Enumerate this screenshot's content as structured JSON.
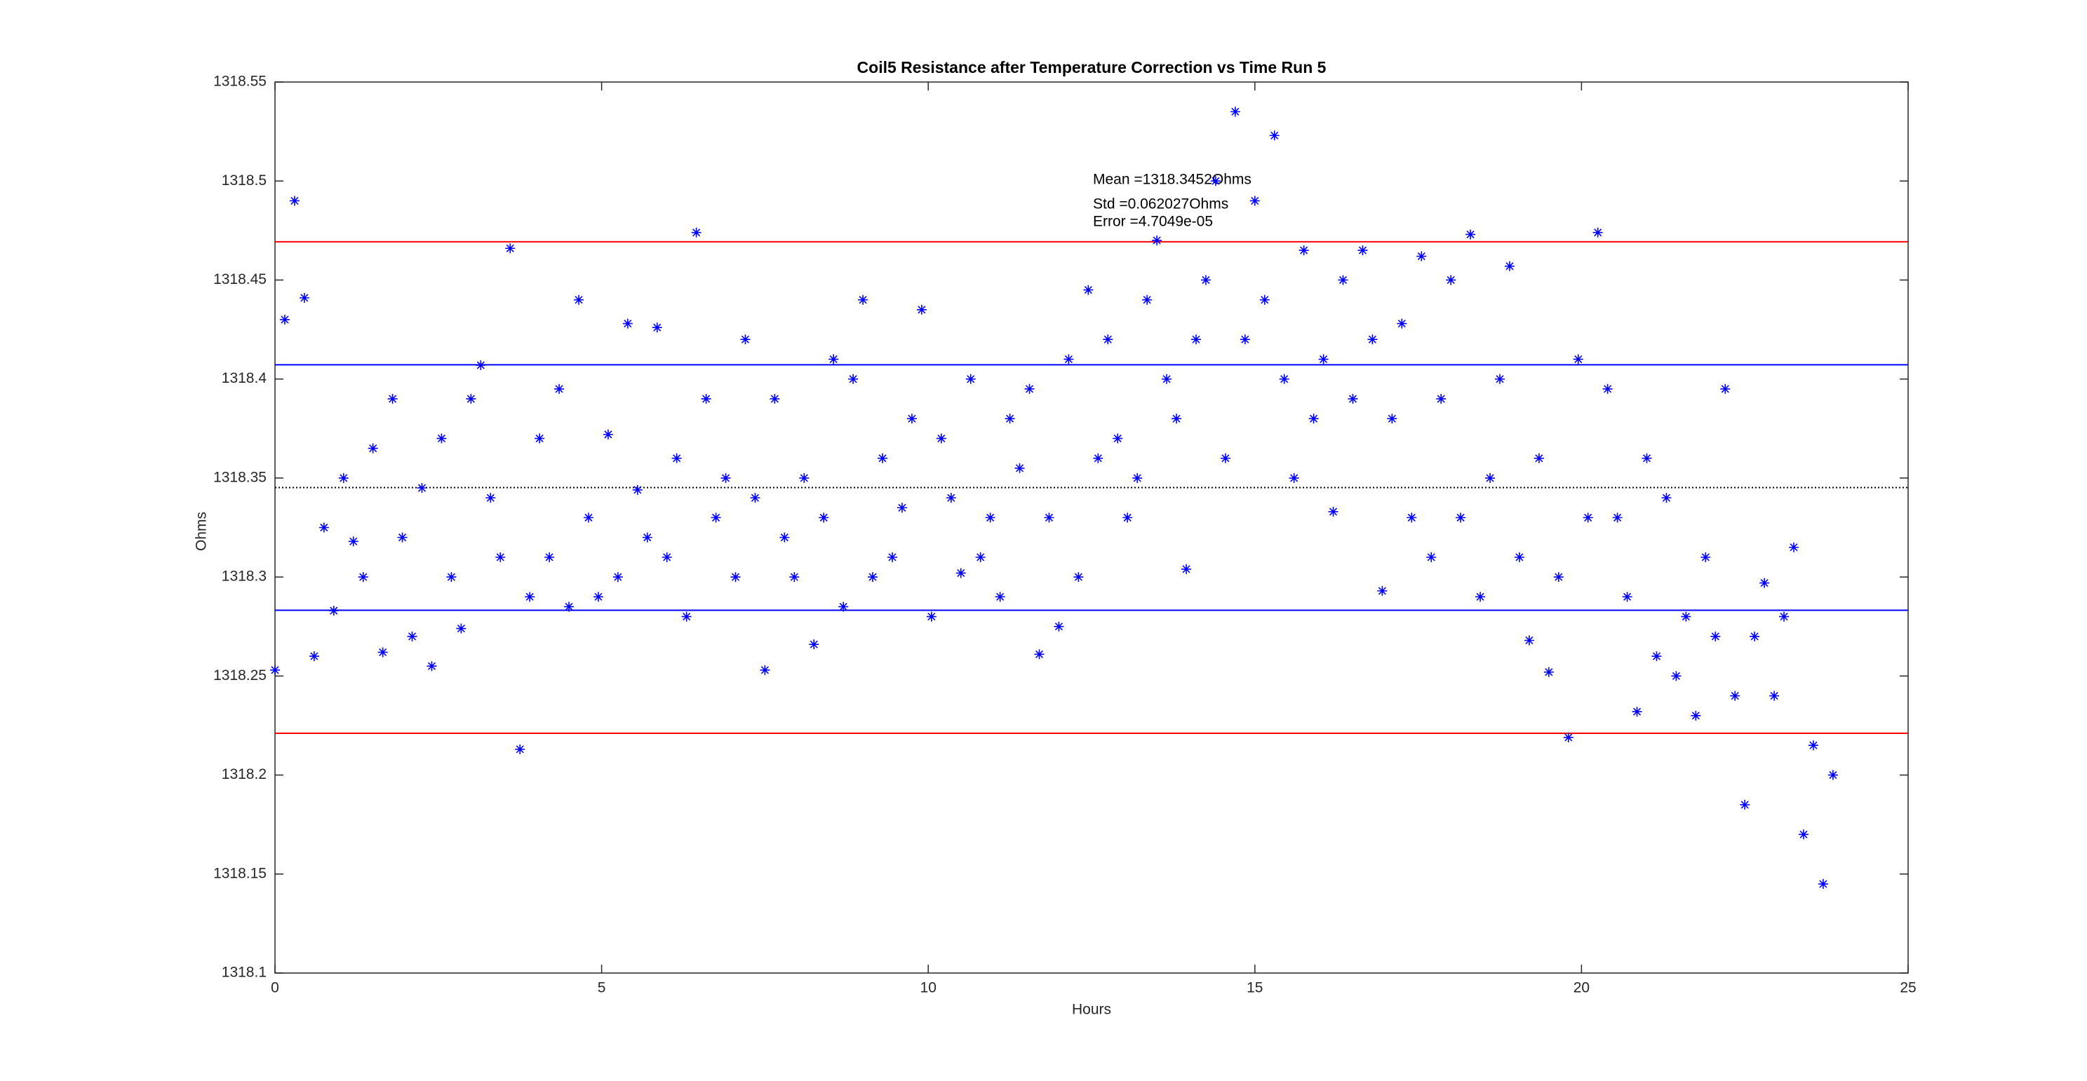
{
  "chart_data": {
    "type": "scatter",
    "title": "Coil5 Resistance after Temperature Correction vs Time Run 5",
    "x_label": "Hours",
    "y_label": "Ohms",
    "xlim": [
      0,
      25
    ],
    "xticks": [
      0,
      5,
      10,
      15,
      20,
      25
    ],
    "ylim": [
      1318.1,
      1318.55
    ],
    "yticks": [
      1318.1,
      1318.15,
      1318.2,
      1318.25,
      1318.3,
      1318.35,
      1318.4,
      1318.45,
      1318.5,
      1318.55
    ],
    "color": "#0000ff",
    "x": [
      0,
      0.15,
      0.3,
      0.45,
      0.6,
      0.75,
      0.9,
      1.05,
      1.2,
      1.35,
      1.5,
      1.65,
      1.8,
      1.95,
      2.1,
      2.25,
      2.4,
      2.55,
      2.7,
      2.85,
      3,
      3.15,
      3.3,
      3.45,
      3.6,
      3.75,
      3.9,
      4.05,
      4.2,
      4.35,
      4.5,
      4.65,
      4.8,
      4.95,
      5.1,
      5.25,
      5.4,
      5.55,
      5.7,
      5.85,
      6,
      6.15,
      6.3,
      6.45,
      6.6,
      6.75,
      6.9,
      7.05,
      7.2,
      7.35,
      7.5,
      7.65,
      7.8,
      7.95,
      8.1,
      8.25,
      8.4,
      8.55,
      8.7,
      8.85,
      9,
      9.15,
      9.3,
      9.45,
      9.6,
      9.75,
      9.9,
      10.05,
      10.2,
      10.35,
      10.5,
      10.65,
      10.8,
      10.95,
      11.1,
      11.25,
      11.4,
      11.55,
      11.7,
      11.85,
      12,
      12.15,
      12.3,
      12.45,
      12.6,
      12.75,
      12.9,
      13.05,
      13.2,
      13.35,
      13.5,
      13.65,
      13.8,
      13.95,
      14.1,
      14.25,
      14.4,
      14.55,
      14.7,
      14.85,
      15,
      15.15,
      15.3,
      15.45,
      15.6,
      15.75,
      15.9,
      16.05,
      16.2,
      16.35,
      16.5,
      16.65,
      16.8,
      16.95,
      17.1,
      17.25,
      17.4,
      17.55,
      17.7,
      17.85,
      18,
      18.15,
      18.3,
      18.45,
      18.6,
      18.75,
      18.9,
      19.05,
      19.2,
      19.35,
      19.5,
      19.65,
      19.8,
      19.95,
      20.1,
      20.25,
      20.4,
      20.55,
      20.7,
      20.85,
      21,
      21.15,
      21.3,
      21.45,
      21.6,
      21.75,
      21.9,
      22.05,
      22.2,
      22.35,
      22.5,
      22.65,
      22.8,
      22.95,
      23.1,
      23.25,
      23.4,
      23.55,
      23.7,
      23.85
    ],
    "values": [
      1318.253,
      1318.43,
      1318.49,
      1318.441,
      1318.26,
      1318.325,
      1318.283,
      1318.35,
      1318.318,
      1318.3,
      1318.365,
      1318.262,
      1318.39,
      1318.32,
      1318.27,
      1318.345,
      1318.255,
      1318.37,
      1318.3,
      1318.274,
      1318.39,
      1318.407,
      1318.34,
      1318.31,
      1318.466,
      1318.213,
      1318.29,
      1318.37,
      1318.31,
      1318.395,
      1318.285,
      1318.44,
      1318.33,
      1318.29,
      1318.372,
      1318.3,
      1318.428,
      1318.344,
      1318.32,
      1318.426,
      1318.31,
      1318.36,
      1318.28,
      1318.474,
      1318.39,
      1318.33,
      1318.35,
      1318.3,
      1318.42,
      1318.34,
      1318.253,
      1318.39,
      1318.32,
      1318.3,
      1318.35,
      1318.266,
      1318.33,
      1318.41,
      1318.285,
      1318.4,
      1318.44,
      1318.3,
      1318.36,
      1318.31,
      1318.335,
      1318.38,
      1318.435,
      1318.28,
      1318.37,
      1318.34,
      1318.302,
      1318.4,
      1318.31,
      1318.33,
      1318.29,
      1318.38,
      1318.355,
      1318.395,
      1318.261,
      1318.33,
      1318.275,
      1318.41,
      1318.3,
      1318.445,
      1318.36,
      1318.42,
      1318.37,
      1318.33,
      1318.35,
      1318.44,
      1318.47,
      1318.4,
      1318.38,
      1318.304,
      1318.42,
      1318.45,
      1318.5,
      1318.36,
      1318.535,
      1318.42,
      1318.49,
      1318.44,
      1318.523,
      1318.4,
      1318.35,
      1318.465,
      1318.38,
      1318.41,
      1318.333,
      1318.45,
      1318.39,
      1318.465,
      1318.42,
      1318.293,
      1318.38,
      1318.428,
      1318.33,
      1318.462,
      1318.31,
      1318.39,
      1318.45,
      1318.33,
      1318.473,
      1318.29,
      1318.35,
      1318.4,
      1318.457,
      1318.31,
      1318.268,
      1318.36,
      1318.252,
      1318.3,
      1318.219,
      1318.41,
      1318.33,
      1318.474,
      1318.395,
      1318.33,
      1318.29,
      1318.232,
      1318.36,
      1318.26,
      1318.34,
      1318.25,
      1318.28,
      1318.23,
      1318.31,
      1318.27,
      1318.395,
      1318.24,
      1318.185,
      1318.27,
      1318.297,
      1318.24,
      1318.28,
      1318.315,
      1318.17,
      1318.215,
      1318.145,
      1318.2
    ],
    "reference_lines": [
      {
        "value": 1318.4693,
        "color": "#ff0000",
        "style": "solid"
      },
      {
        "value": 1318.4072,
        "color": "#0000ff",
        "style": "solid"
      },
      {
        "value": 1318.3452,
        "color": "#000000",
        "style": "dotted"
      },
      {
        "value": 1318.2832,
        "color": "#0000ff",
        "style": "solid"
      },
      {
        "value": 1318.2211,
        "color": "#ff0000",
        "style": "solid"
      }
    ],
    "annotations": [
      "Mean =1318.3452Ohms",
      "Std =0.062027Ohms",
      "Error =4.7049e-05"
    ]
  }
}
